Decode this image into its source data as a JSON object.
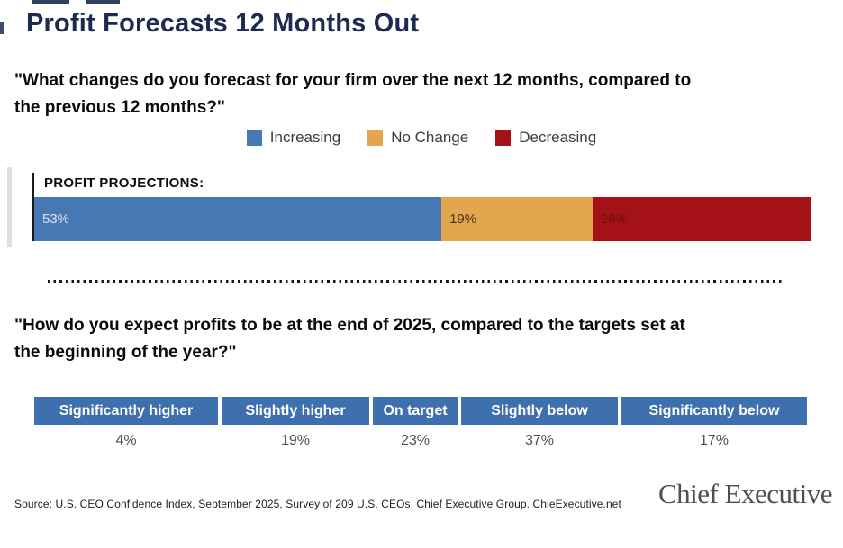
{
  "title": "Profit Forecasts 12 Months Out",
  "questions": {
    "q1": "\"What changes do you forecast for your firm over the next 12 months, compared to\nthe previous 12 months?\"",
    "q2": "\"How do you expect profits to be at the end of 2025, compared to the targets set at\nthe beginning of the year?\""
  },
  "chart_label": "PROFIT PROJECTIONS:",
  "chart_data": [
    {
      "type": "bar",
      "variant": "horizontal-stacked",
      "categories": [
        "Increasing",
        "No Change",
        "Decreasing"
      ],
      "values": [
        53,
        19,
        28
      ],
      "unit": "%",
      "value_labels": [
        "53%",
        "19%",
        "28%"
      ],
      "colors": [
        "#4878b4",
        "#e2a64f",
        "#a41217"
      ],
      "value_label_colors": [
        "#d9e1ec",
        "#463712",
        "#73100f"
      ],
      "legend_position": "top-center",
      "xlim": [
        0,
        100
      ],
      "grid": false
    },
    {
      "type": "table",
      "categories": [
        "Significantly higher",
        "Slightly higher",
        "On target",
        "Slightly below",
        "Significantly below"
      ],
      "values": [
        4,
        19,
        23,
        37,
        17
      ],
      "unit": "%",
      "value_labels": [
        "4%",
        "19%",
        "23%",
        "37%",
        "17%"
      ],
      "header_bg": "#3e6fae",
      "header_text_color": "#ffffff"
    }
  ],
  "footer": {
    "source": "Source: U.S. CEO Confidence Index, September 2025, Survey of 209 U.S. CEOs, Chief Executive Group. ChieExecutive.net",
    "logo_text": "Chief Executive"
  },
  "colors": {
    "title": "#1c2b4f",
    "increasing_blue": "#4878b4",
    "no_change_orange": "#e2a64f",
    "decreasing_red": "#a41217",
    "table_header_blue": "#3e6fae"
  }
}
